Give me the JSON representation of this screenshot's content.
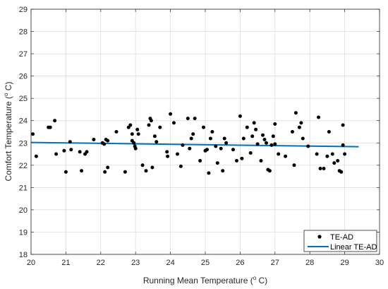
{
  "chart_data": {
    "type": "scatter",
    "xlabel_parts": [
      "Running Mean Temperature (",
      "o",
      " C)"
    ],
    "ylabel_parts": [
      "Comfort Temperature (",
      "o",
      " C)"
    ],
    "xlim": [
      20,
      30
    ],
    "ylim": [
      18,
      29
    ],
    "x_ticks": [
      "20",
      "21",
      "22",
      "23",
      "24",
      "25",
      "26",
      "27",
      "28",
      "29",
      "30"
    ],
    "y_ticks": [
      "18",
      "19",
      "20",
      "21",
      "22",
      "23",
      "24",
      "25",
      "26",
      "27",
      "28",
      "29"
    ],
    "grid": true,
    "legend_position": "bottom-right",
    "series": [
      {
        "name": "TE-AD",
        "style": "markers",
        "color": "#000000",
        "points": [
          [
            20.05,
            23.4
          ],
          [
            20.15,
            22.4
          ],
          [
            20.5,
            23.7
          ],
          [
            20.55,
            23.7
          ],
          [
            20.68,
            24.0
          ],
          [
            20.72,
            22.5
          ],
          [
            20.95,
            22.65
          ],
          [
            21.0,
            21.7
          ],
          [
            21.12,
            23.05
          ],
          [
            21.15,
            22.7
          ],
          [
            21.4,
            22.6
          ],
          [
            21.45,
            21.75
          ],
          [
            21.55,
            22.5
          ],
          [
            21.6,
            22.6
          ],
          [
            21.8,
            23.15
          ],
          [
            22.05,
            23.0
          ],
          [
            22.1,
            22.95
          ],
          [
            22.12,
            21.7
          ],
          [
            22.15,
            23.15
          ],
          [
            22.2,
            21.9
          ],
          [
            22.2,
            23.1
          ],
          [
            22.45,
            23.5
          ],
          [
            22.7,
            21.7
          ],
          [
            22.8,
            23.7
          ],
          [
            22.85,
            23.8
          ],
          [
            22.9,
            23.1
          ],
          [
            22.9,
            23.4
          ],
          [
            22.95,
            23.0
          ],
          [
            22.98,
            22.85
          ],
          [
            23.0,
            22.75
          ],
          [
            23.05,
            23.6
          ],
          [
            23.08,
            23.4
          ],
          [
            23.2,
            22.0
          ],
          [
            23.3,
            21.75
          ],
          [
            23.38,
            23.8
          ],
          [
            23.42,
            24.1
          ],
          [
            23.45,
            24.0
          ],
          [
            23.48,
            21.9
          ],
          [
            23.55,
            23.3
          ],
          [
            23.6,
            23.05
          ],
          [
            23.7,
            23.7
          ],
          [
            23.9,
            22.6
          ],
          [
            23.92,
            22.4
          ],
          [
            24.0,
            24.3
          ],
          [
            24.1,
            23.9
          ],
          [
            24.2,
            22.5
          ],
          [
            24.3,
            21.95
          ],
          [
            24.35,
            22.9
          ],
          [
            24.5,
            24.1
          ],
          [
            24.55,
            22.75
          ],
          [
            24.6,
            23.2
          ],
          [
            24.65,
            23.4
          ],
          [
            24.7,
            24.1
          ],
          [
            24.85,
            22.2
          ],
          [
            24.95,
            23.7
          ],
          [
            25.0,
            22.65
          ],
          [
            25.05,
            22.7
          ],
          [
            25.1,
            21.65
          ],
          [
            25.15,
            23.2
          ],
          [
            25.2,
            23.5
          ],
          [
            25.3,
            22.85
          ],
          [
            25.35,
            22.1
          ],
          [
            25.45,
            22.75
          ],
          [
            25.5,
            21.75
          ],
          [
            25.55,
            23.2
          ],
          [
            25.6,
            23.0
          ],
          [
            25.8,
            22.7
          ],
          [
            25.9,
            22.2
          ],
          [
            26.0,
            24.2
          ],
          [
            26.05,
            22.3
          ],
          [
            26.1,
            23.2
          ],
          [
            26.2,
            23.7
          ],
          [
            26.3,
            22.55
          ],
          [
            26.35,
            23.3
          ],
          [
            26.4,
            23.9
          ],
          [
            26.45,
            23.6
          ],
          [
            26.5,
            22.95
          ],
          [
            26.6,
            22.2
          ],
          [
            26.65,
            23.35
          ],
          [
            26.7,
            23.15
          ],
          [
            26.75,
            23.0
          ],
          [
            26.8,
            21.8
          ],
          [
            26.85,
            21.75
          ],
          [
            26.9,
            22.9
          ],
          [
            26.95,
            23.3
          ],
          [
            27.0,
            22.95
          ],
          [
            27.0,
            23.85
          ],
          [
            27.1,
            22.5
          ],
          [
            27.3,
            22.4
          ],
          [
            27.5,
            23.5
          ],
          [
            27.55,
            22.0
          ],
          [
            27.6,
            24.35
          ],
          [
            27.7,
            23.7
          ],
          [
            27.75,
            23.9
          ],
          [
            27.8,
            23.2
          ],
          [
            27.95,
            22.85
          ],
          [
            28.2,
            22.5
          ],
          [
            28.25,
            24.15
          ],
          [
            28.3,
            21.85
          ],
          [
            28.4,
            21.85
          ],
          [
            28.5,
            22.4
          ],
          [
            28.55,
            23.5
          ],
          [
            28.65,
            22.5
          ],
          [
            28.7,
            22.1
          ],
          [
            28.8,
            22.2
          ],
          [
            28.85,
            21.75
          ],
          [
            28.9,
            21.7
          ],
          [
            28.95,
            22.9
          ],
          [
            28.95,
            23.8
          ],
          [
            29.0,
            22.5
          ]
        ]
      },
      {
        "name": "Linear TE-AD",
        "style": "line",
        "color": "#0072BD",
        "points": [
          [
            20.0,
            23.02
          ],
          [
            29.4,
            22.83
          ]
        ]
      }
    ]
  }
}
